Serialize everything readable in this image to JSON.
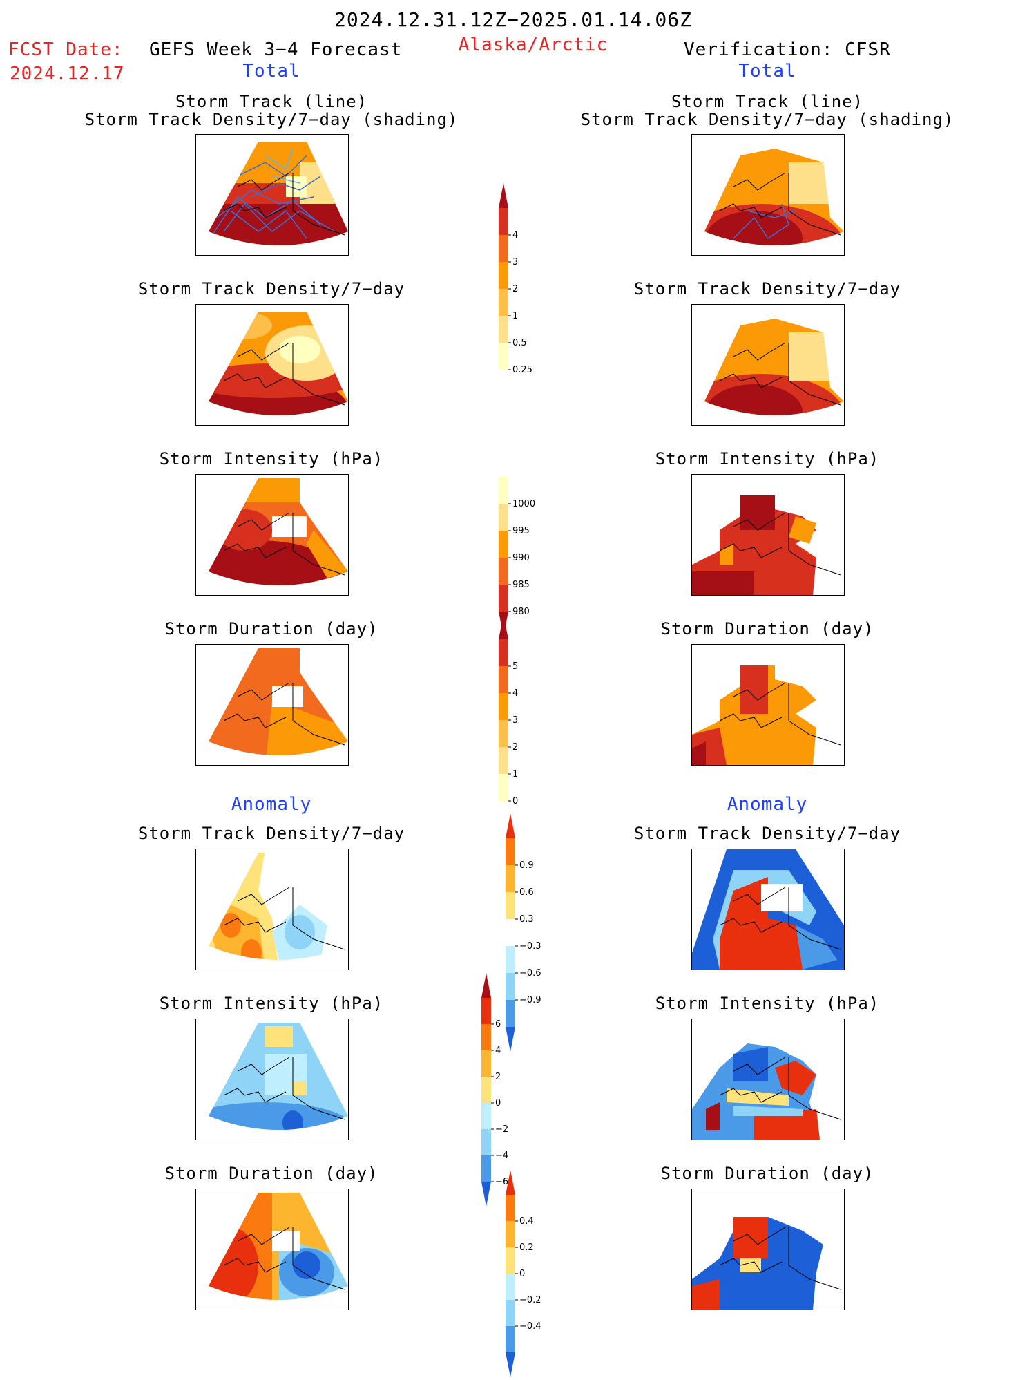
{
  "header": {
    "period": "2024.12.31.12Z−2025.01.14.06Z",
    "fcst_label": "FCST Date:",
    "fcst_date": "2024.12.17",
    "left_title": "GEFS Week 3−4 Forecast",
    "region": "Alaska/Arctic",
    "right_title": "Verification: CFSR"
  },
  "sections": {
    "total": "Total",
    "anomaly": "Anomaly"
  },
  "panel_titles": {
    "track_line": "Storm Track (line)",
    "track_shading": "Storm Track Density/7−day (shading)",
    "density": "Storm Track Density/7−day",
    "intensity": "Storm Intensity (hPa)",
    "duration": "Storm Duration (day)"
  },
  "colorbars": {
    "density_total": {
      "labels": [
        "4",
        "3",
        "2",
        "1",
        "0.5",
        "0.25"
      ],
      "colors": [
        "#a50f15",
        "#d7301f",
        "#f26a1e",
        "#fb9a06",
        "#fdbe4a",
        "#fee08b",
        "#ffffbf"
      ]
    },
    "intensity_total": {
      "labels": [
        "1000",
        "995",
        "990",
        "985",
        "980"
      ],
      "colors": [
        "#ffffbf",
        "#fee08b",
        "#fb9a06",
        "#f26a1e",
        "#d7301f",
        "#a50f15"
      ]
    },
    "duration_total": {
      "labels": [
        "5",
        "4",
        "3",
        "2",
        "1",
        "0"
      ],
      "colors": [
        "#a50f15",
        "#d7301f",
        "#f26a1e",
        "#fb9a06",
        "#fdbe4a",
        "#fee08b",
        "#ffffbf"
      ]
    },
    "density_anom": {
      "labels": [
        "0.9",
        "0.6",
        "0.3",
        "−0.3",
        "−0.6",
        "−0.9"
      ],
      "colors": [
        "#e8300f",
        "#fb7a10",
        "#fdb530",
        "#fde37a",
        "#ffffff",
        "#bfeeff",
        "#8fd3f7",
        "#4a9ae8",
        "#1c5fd6"
      ]
    },
    "intensity_anom": {
      "labels": [
        "6",
        "4",
        "2",
        "0",
        "−2",
        "−4",
        "−6"
      ],
      "colors": [
        "#a50f15",
        "#e8300f",
        "#fb7a10",
        "#fdb530",
        "#fde37a",
        "#bfeeff",
        "#8fd3f7",
        "#4a9ae8",
        "#1c5fd6"
      ]
    },
    "duration_anom": {
      "labels": [
        "0.4",
        "0.2",
        "0",
        "−0.2",
        "−0.4"
      ],
      "colors": [
        "#e8300f",
        "#fb7a10",
        "#fdb530",
        "#fde37a",
        "#bfeeff",
        "#8fd3f7",
        "#4a9ae8",
        "#1c5fd6"
      ]
    }
  }
}
